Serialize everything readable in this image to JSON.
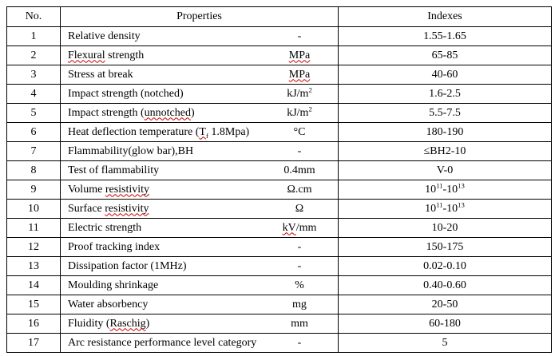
{
  "table": {
    "headers": [
      "No.",
      "Properties",
      "Indexes"
    ],
    "border_color": "#000000",
    "spellcheck_color": "#cc0000",
    "rows": [
      {
        "no": "1",
        "property": [
          {
            "t": "Relative density"
          }
        ],
        "unit": [
          {
            "t": "-"
          }
        ],
        "index": [
          {
            "t": "1.55-1.65"
          }
        ]
      },
      {
        "no": "2",
        "property": [
          {
            "t": "Flexural",
            "wavy": true
          },
          {
            "t": " strength"
          }
        ],
        "unit": [
          {
            "t": "MPa",
            "wavy": true
          }
        ],
        "index": [
          {
            "t": "65-85"
          }
        ]
      },
      {
        "no": "3",
        "property": [
          {
            "t": "Stress at break"
          }
        ],
        "unit": [
          {
            "t": "MPa",
            "wavy": true
          }
        ],
        "index": [
          {
            "t": "40-60"
          }
        ]
      },
      {
        "no": "4",
        "property": [
          {
            "t": "Impact strength (notched)"
          }
        ],
        "unit": [
          {
            "t": "kJ/m"
          },
          {
            "t": "2",
            "script": "sup"
          }
        ],
        "index": [
          {
            "t": "1.6-2.5"
          }
        ]
      },
      {
        "no": "5",
        "property": [
          {
            "t": "Impact strength ("
          },
          {
            "t": "unnotched",
            "wavy": true
          },
          {
            "t": ")"
          }
        ],
        "unit": [
          {
            "t": "kJ/m"
          },
          {
            "t": "2",
            "script": "sup"
          }
        ],
        "index": [
          {
            "t": "5.5-7.5"
          }
        ]
      },
      {
        "no": "6",
        "property": [
          {
            "t": "Heat deflection temperature ("
          },
          {
            "t": "T",
            "wavy": true
          },
          {
            "t": "f",
            "wavy": true,
            "script": "sub"
          },
          {
            "t": " 1.8Mpa)"
          }
        ],
        "unit": [
          {
            "t": "°C"
          }
        ],
        "index": [
          {
            "t": "180-190"
          }
        ]
      },
      {
        "no": "7",
        "property": [
          {
            "t": "Flammability(glow bar),BH"
          }
        ],
        "unit": [
          {
            "t": "-"
          }
        ],
        "index": [
          {
            "t": "≤BH2-10"
          }
        ]
      },
      {
        "no": "8",
        "property": [
          {
            "t": "Test of flammability"
          }
        ],
        "unit": [
          {
            "t": "0.4mm"
          }
        ],
        "index": [
          {
            "t": "V-0"
          }
        ]
      },
      {
        "no": "9",
        "property": [
          {
            "t": "Volume "
          },
          {
            "t": "resistivity",
            "wavy": true
          }
        ],
        "unit": [
          {
            "t": "Ω.cm"
          }
        ],
        "index": [
          {
            "t": "10"
          },
          {
            "t": "11",
            "script": "sup"
          },
          {
            "t": "-10"
          },
          {
            "t": "13",
            "script": "sup"
          }
        ]
      },
      {
        "no": "10",
        "property": [
          {
            "t": "Surface "
          },
          {
            "t": "resistivity",
            "wavy": true
          }
        ],
        "unit": [
          {
            "t": "Ω"
          }
        ],
        "index": [
          {
            "t": "10"
          },
          {
            "t": "11",
            "script": "sup"
          },
          {
            "t": "-10"
          },
          {
            "t": "13",
            "script": "sup"
          }
        ]
      },
      {
        "no": "11",
        "property": [
          {
            "t": "Electric strength"
          }
        ],
        "unit": [
          {
            "t": "kV",
            "wavy": true
          },
          {
            "t": "/mm"
          }
        ],
        "index": [
          {
            "t": "10-20"
          }
        ]
      },
      {
        "no": "12",
        "property": [
          {
            "t": "Proof tracking index"
          }
        ],
        "unit": [
          {
            "t": "-"
          }
        ],
        "index": [
          {
            "t": "150-175"
          }
        ]
      },
      {
        "no": "13",
        "property": [
          {
            "t": "Dissipation factor (1MHz)"
          }
        ],
        "unit": [
          {
            "t": "-"
          }
        ],
        "index": [
          {
            "t": "0.02-0.10"
          }
        ]
      },
      {
        "no": "14",
        "property": [
          {
            "t": "Moulding shrinkage"
          }
        ],
        "unit": [
          {
            "t": "%"
          }
        ],
        "index": [
          {
            "t": "0.40-0.60"
          }
        ]
      },
      {
        "no": "15",
        "property": [
          {
            "t": "Water absorbency"
          }
        ],
        "unit": [
          {
            "t": "mg"
          }
        ],
        "index": [
          {
            "t": "20-50"
          }
        ]
      },
      {
        "no": "16",
        "property": [
          {
            "t": "Fluidity ("
          },
          {
            "t": "Raschig",
            "wavy": true
          },
          {
            "t": ")"
          }
        ],
        "unit": [
          {
            "t": "mm"
          }
        ],
        "index": [
          {
            "t": "60-180"
          }
        ]
      },
      {
        "no": "17",
        "property": [
          {
            "t": "Arc resistance performance level category"
          }
        ],
        "unit": [
          {
            "t": "-"
          }
        ],
        "index": [
          {
            "t": "5"
          }
        ]
      }
    ]
  }
}
